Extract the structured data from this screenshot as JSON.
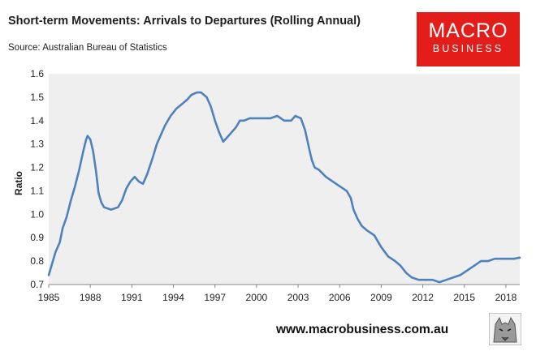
{
  "header": {
    "title": "Short-term Movements: Arrivals to Departures (Rolling Annual)",
    "source": "Source: Australian Bureau of Statistics"
  },
  "logo": {
    "main": "MACRO",
    "sub": "BUSINESS"
  },
  "footer": {
    "website": "www.macrobusiness.com.au"
  },
  "colors": {
    "line": "#4f81bd",
    "plot_bg": "#efefef",
    "logo_bg": "#e31d1a"
  },
  "chart_data": {
    "type": "line",
    "title": "Short-term Movements: Arrivals to Departures (Rolling Annual)",
    "xlabel": "",
    "ylabel": "Ratio",
    "xlim": [
      1985,
      2019
    ],
    "ylim": [
      0.7,
      1.6
    ],
    "yticks": [
      0.7,
      0.8,
      0.9,
      1.0,
      1.1,
      1.2,
      1.3,
      1.4,
      1.5,
      1.6
    ],
    "ytick_labels": [
      "0.7",
      "0.8",
      "0.9",
      "1.0",
      "1.1",
      "1.2",
      "1.3",
      "1.4",
      "1.5",
      "1.6"
    ],
    "xticks": [
      1985,
      1988,
      1991,
      1994,
      1997,
      2000,
      2003,
      2006,
      2009,
      2012,
      2015,
      2018
    ],
    "xtick_labels": [
      "1985",
      "1988",
      "1991",
      "1994",
      "1997",
      "2000",
      "2003",
      "2006",
      "2009",
      "2012",
      "2015",
      "2018"
    ],
    "grid": false,
    "legend": "none",
    "series": [
      {
        "values": [
          [
            1985.0,
            0.74
          ],
          [
            1985.2,
            0.78
          ],
          [
            1985.5,
            0.84
          ],
          [
            1985.8,
            0.88
          ],
          [
            1986.0,
            0.94
          ],
          [
            1986.3,
            0.99
          ],
          [
            1986.6,
            1.06
          ],
          [
            1986.9,
            1.12
          ],
          [
            1987.2,
            1.19
          ],
          [
            1987.5,
            1.27
          ],
          [
            1987.7,
            1.32
          ],
          [
            1987.8,
            1.335
          ],
          [
            1988.0,
            1.32
          ],
          [
            1988.2,
            1.27
          ],
          [
            1988.4,
            1.19
          ],
          [
            1988.6,
            1.09
          ],
          [
            1988.8,
            1.05
          ],
          [
            1989.0,
            1.03
          ],
          [
            1989.5,
            1.02
          ],
          [
            1990.0,
            1.03
          ],
          [
            1990.3,
            1.06
          ],
          [
            1990.6,
            1.11
          ],
          [
            1990.9,
            1.14
          ],
          [
            1991.2,
            1.16
          ],
          [
            1991.5,
            1.14
          ],
          [
            1991.8,
            1.13
          ],
          [
            1992.1,
            1.17
          ],
          [
            1992.5,
            1.24
          ],
          [
            1992.8,
            1.3
          ],
          [
            1993.1,
            1.34
          ],
          [
            1993.4,
            1.38
          ],
          [
            1993.8,
            1.42
          ],
          [
            1994.2,
            1.45
          ],
          [
            1994.6,
            1.47
          ],
          [
            1995.0,
            1.49
          ],
          [
            1995.3,
            1.51
          ],
          [
            1995.7,
            1.52
          ],
          [
            1996.0,
            1.52
          ],
          [
            1996.4,
            1.5
          ],
          [
            1996.7,
            1.46
          ],
          [
            1997.0,
            1.4
          ],
          [
            1997.3,
            1.35
          ],
          [
            1997.6,
            1.31
          ],
          [
            1997.9,
            1.33
          ],
          [
            1998.2,
            1.35
          ],
          [
            1998.5,
            1.37
          ],
          [
            1998.8,
            1.4
          ],
          [
            1999.1,
            1.4
          ],
          [
            1999.5,
            1.41
          ],
          [
            2000.0,
            1.41
          ],
          [
            2000.5,
            1.41
          ],
          [
            2001.0,
            1.41
          ],
          [
            2001.5,
            1.42
          ],
          [
            2002.0,
            1.4
          ],
          [
            2002.5,
            1.4
          ],
          [
            2002.8,
            1.42
          ],
          [
            2003.2,
            1.41
          ],
          [
            2003.5,
            1.36
          ],
          [
            2003.8,
            1.28
          ],
          [
            2004.0,
            1.23
          ],
          [
            2004.2,
            1.2
          ],
          [
            2004.5,
            1.19
          ],
          [
            2005.0,
            1.16
          ],
          [
            2005.5,
            1.14
          ],
          [
            2006.0,
            1.12
          ],
          [
            2006.5,
            1.1
          ],
          [
            2006.8,
            1.07
          ],
          [
            2007.0,
            1.02
          ],
          [
            2007.3,
            0.98
          ],
          [
            2007.6,
            0.95
          ],
          [
            2008.0,
            0.93
          ],
          [
            2008.5,
            0.91
          ],
          [
            2009.0,
            0.86
          ],
          [
            2009.5,
            0.82
          ],
          [
            2010.0,
            0.8
          ],
          [
            2010.4,
            0.78
          ],
          [
            2010.8,
            0.75
          ],
          [
            2011.2,
            0.73
          ],
          [
            2011.7,
            0.72
          ],
          [
            2012.2,
            0.72
          ],
          [
            2012.7,
            0.72
          ],
          [
            2013.2,
            0.71
          ],
          [
            2013.7,
            0.72
          ],
          [
            2014.2,
            0.73
          ],
          [
            2014.7,
            0.74
          ],
          [
            2015.2,
            0.76
          ],
          [
            2015.7,
            0.78
          ],
          [
            2016.2,
            0.8
          ],
          [
            2016.7,
            0.8
          ],
          [
            2017.2,
            0.81
          ],
          [
            2017.7,
            0.81
          ],
          [
            2018.2,
            0.81
          ],
          [
            2018.6,
            0.81
          ],
          [
            2019.0,
            0.815
          ]
        ]
      }
    ]
  }
}
